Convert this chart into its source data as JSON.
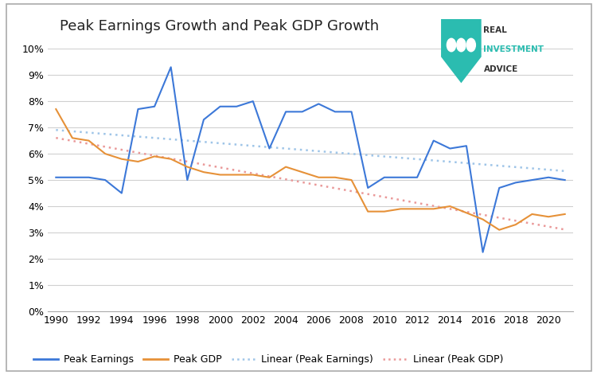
{
  "title": "Peak Earnings Growth and Peak GDP Growth",
  "background_color": "#ffffff",
  "plot_bg_color": "#ffffff",
  "grid_color": "#d0d0d0",
  "years": [
    1990,
    1991,
    1992,
    1993,
    1994,
    1995,
    1996,
    1997,
    1998,
    1999,
    2000,
    2001,
    2002,
    2003,
    2004,
    2005,
    2006,
    2007,
    2008,
    2009,
    2010,
    2011,
    2012,
    2013,
    2014,
    2015,
    2016,
    2017,
    2018,
    2019,
    2020,
    2021
  ],
  "peak_earnings": [
    5.1,
    5.1,
    5.1,
    5.0,
    4.5,
    7.7,
    7.8,
    9.3,
    5.0,
    7.3,
    7.8,
    7.8,
    8.0,
    6.2,
    7.6,
    7.6,
    7.9,
    7.6,
    7.6,
    4.7,
    5.1,
    5.1,
    5.1,
    6.5,
    6.2,
    6.3,
    2.25,
    4.7,
    4.9,
    5.0,
    5.1,
    5.0
  ],
  "peak_gdp": [
    7.7,
    6.6,
    6.5,
    6.0,
    5.8,
    5.7,
    5.9,
    5.8,
    5.5,
    5.3,
    5.2,
    5.2,
    5.2,
    5.1,
    5.5,
    5.3,
    5.1,
    5.1,
    5.0,
    3.8,
    3.8,
    3.9,
    3.9,
    3.9,
    4.0,
    3.75,
    3.5,
    3.1,
    3.3,
    3.7,
    3.6,
    3.7
  ],
  "earnings_color": "#3c78d8",
  "gdp_color": "#e69138",
  "earnings_linear_color": "#9fc5e8",
  "gdp_linear_color": "#ea9999",
  "ytick_labels": [
    "0%",
    "1%",
    "2%",
    "3%",
    "4%",
    "5%",
    "6%",
    "7%",
    "8%",
    "9%",
    "10%"
  ],
  "ytick_vals": [
    0.0,
    0.01,
    0.02,
    0.03,
    0.04,
    0.05,
    0.06,
    0.07,
    0.08,
    0.09,
    0.1
  ],
  "xticks": [
    1990,
    1992,
    1994,
    1996,
    1998,
    2000,
    2002,
    2004,
    2006,
    2008,
    2010,
    2012,
    2014,
    2016,
    2018,
    2020
  ],
  "legend_labels": [
    "Peak Earnings",
    "Peak GDP",
    "Linear (Peak Earnings)",
    "Linear (Peak GDP)"
  ],
  "shield_color": "#2bbcb0",
  "logo_text_color1": "#333333",
  "logo_text_color2": "#2bbcb0"
}
